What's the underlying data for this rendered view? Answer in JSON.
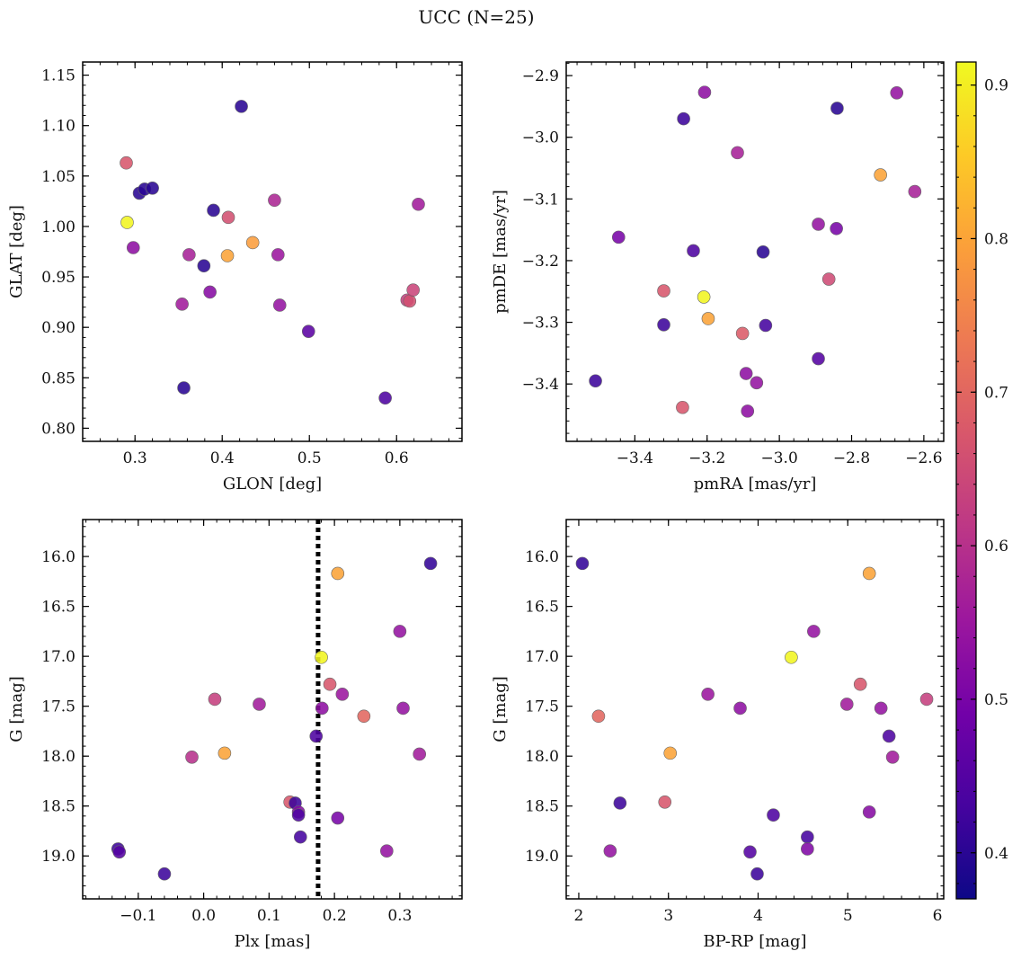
{
  "figure": {
    "title": "UCC (N=25)"
  },
  "colorbar": {
    "colormap": "plasma",
    "range": [
      0.37,
      0.915
    ],
    "ticks": [
      0.4,
      0.5,
      0.6,
      0.7,
      0.8,
      0.9
    ],
    "tick_labels": [
      "0.4",
      "0.5",
      "0.6",
      "0.7",
      "0.8",
      "0.9"
    ],
    "colors": [
      "#0d0887",
      "#46039f",
      "#7201a8",
      "#9c179e",
      "#bd3786",
      "#d8576b",
      "#ed7953",
      "#fb9f3a",
      "#fdca26",
      "#f0f921"
    ]
  },
  "chart_data": [
    {
      "type": "scatter",
      "name": "glon-glat",
      "xlabel": "GLON [deg]",
      "ylabel": "GLAT [deg]",
      "xlim": [
        0.24,
        0.675
      ],
      "ylim": [
        0.787,
        1.163
      ],
      "yinvert": false,
      "xticks": [
        0.3,
        0.4,
        0.5,
        0.6
      ],
      "xtick_labels": [
        "0.3",
        "0.4",
        "0.5",
        "0.6"
      ],
      "yticks": [
        0.8,
        0.85,
        0.9,
        0.95,
        1.0,
        1.05,
        1.1,
        1.15
      ],
      "ytick_labels": [
        "0.80",
        "0.85",
        "0.90",
        "0.95",
        "1.00",
        "1.05",
        "1.10",
        "1.15"
      ],
      "points": [
        {
          "x": 0.422,
          "y": 1.119,
          "c": 0.4
        },
        {
          "x": 0.29,
          "y": 1.063,
          "c": 0.67
        },
        {
          "x": 0.305,
          "y": 1.033,
          "c": 0.4
        },
        {
          "x": 0.311,
          "y": 1.037,
          "c": 0.4
        },
        {
          "x": 0.32,
          "y": 1.038,
          "c": 0.4
        },
        {
          "x": 0.291,
          "y": 1.004,
          "c": 0.91
        },
        {
          "x": 0.298,
          "y": 0.979,
          "c": 0.53
        },
        {
          "x": 0.39,
          "y": 1.016,
          "c": 0.4
        },
        {
          "x": 0.407,
          "y": 1.009,
          "c": 0.66
        },
        {
          "x": 0.46,
          "y": 1.026,
          "c": 0.58
        },
        {
          "x": 0.625,
          "y": 1.022,
          "c": 0.56
        },
        {
          "x": 0.362,
          "y": 0.972,
          "c": 0.57
        },
        {
          "x": 0.406,
          "y": 0.971,
          "c": 0.8
        },
        {
          "x": 0.435,
          "y": 0.984,
          "c": 0.79
        },
        {
          "x": 0.379,
          "y": 0.961,
          "c": 0.4
        },
        {
          "x": 0.464,
          "y": 0.972,
          "c": 0.55
        },
        {
          "x": 0.354,
          "y": 0.923,
          "c": 0.56
        },
        {
          "x": 0.386,
          "y": 0.935,
          "c": 0.52
        },
        {
          "x": 0.466,
          "y": 0.922,
          "c": 0.54
        },
        {
          "x": 0.499,
          "y": 0.896,
          "c": 0.46
        },
        {
          "x": 0.612,
          "y": 0.927,
          "c": 0.63
        },
        {
          "x": 0.615,
          "y": 0.926,
          "c": 0.66
        },
        {
          "x": 0.619,
          "y": 0.937,
          "c": 0.64
        },
        {
          "x": 0.356,
          "y": 0.84,
          "c": 0.4
        },
        {
          "x": 0.587,
          "y": 0.83,
          "c": 0.44
        }
      ]
    },
    {
      "type": "scatter",
      "name": "pm",
      "xlabel": "pmRA [mas/yr]",
      "ylabel": "pmDE [mas/yr]",
      "xlim": [
        -3.59,
        -2.545
      ],
      "ylim": [
        -3.493,
        -2.878
      ],
      "yinvert": false,
      "xticks": [
        -3.4,
        -3.2,
        -3.0,
        -2.8,
        -2.6
      ],
      "xtick_labels": [
        "−3.4",
        "−3.2",
        "−3.0",
        "−2.8",
        "−2.6"
      ],
      "yticks": [
        -3.4,
        -3.3,
        -3.2,
        -3.1,
        -3.0,
        -2.9
      ],
      "ytick_labels": [
        "−3.4",
        "−3.3",
        "−3.2",
        "−3.1",
        "−3.0",
        "−2.9"
      ],
      "points": [
        {
          "x": -3.207,
          "y": -2.927,
          "c": 0.53
        },
        {
          "x": -2.675,
          "y": -2.928,
          "c": 0.54
        },
        {
          "x": -3.265,
          "y": -2.97,
          "c": 0.42
        },
        {
          "x": -2.84,
          "y": -2.953,
          "c": 0.4
        },
        {
          "x": -3.116,
          "y": -3.025,
          "c": 0.57
        },
        {
          "x": -2.72,
          "y": -3.061,
          "c": 0.8
        },
        {
          "x": -2.625,
          "y": -3.088,
          "c": 0.57
        },
        {
          "x": -3.445,
          "y": -3.162,
          "c": 0.5
        },
        {
          "x": -2.892,
          "y": -3.141,
          "c": 0.54
        },
        {
          "x": -2.842,
          "y": -3.148,
          "c": 0.5
        },
        {
          "x": -3.238,
          "y": -3.184,
          "c": 0.44
        },
        {
          "x": -3.045,
          "y": -3.186,
          "c": 0.4
        },
        {
          "x": -3.32,
          "y": -3.249,
          "c": 0.67
        },
        {
          "x": -3.209,
          "y": -3.259,
          "c": 0.91
        },
        {
          "x": -2.863,
          "y": -3.23,
          "c": 0.65
        },
        {
          "x": -3.32,
          "y": -3.304,
          "c": 0.42
        },
        {
          "x": -3.197,
          "y": -3.294,
          "c": 0.8
        },
        {
          "x": -3.102,
          "y": -3.318,
          "c": 0.68
        },
        {
          "x": -3.038,
          "y": -3.305,
          "c": 0.43
        },
        {
          "x": -2.892,
          "y": -3.359,
          "c": 0.45
        },
        {
          "x": -3.509,
          "y": -3.395,
          "c": 0.42
        },
        {
          "x": -3.092,
          "y": -3.383,
          "c": 0.53
        },
        {
          "x": -3.063,
          "y": -3.398,
          "c": 0.54
        },
        {
          "x": -3.268,
          "y": -3.438,
          "c": 0.67
        },
        {
          "x": -3.088,
          "y": -3.444,
          "c": 0.53
        }
      ]
    },
    {
      "type": "scatter",
      "name": "plx-g",
      "xlabel": "Plx [mas]",
      "ylabel": "G [mag]",
      "xlim": [
        -0.185,
        0.395
      ],
      "ylim": [
        15.63,
        19.43
      ],
      "yinvert": true,
      "vline": {
        "x": 0.175,
        "style": "dotted"
      },
      "xticks": [
        -0.1,
        0.0,
        0.1,
        0.2,
        0.3
      ],
      "xtick_labels": [
        "−0.1",
        "0.0",
        "0.1",
        "0.2",
        "0.3"
      ],
      "yticks": [
        16.0,
        16.5,
        17.0,
        17.5,
        18.0,
        18.5,
        19.0
      ],
      "ytick_labels": [
        "16.0",
        "16.5",
        "17.0",
        "17.5",
        "18.0",
        "18.5",
        "19.0"
      ],
      "points": [
        {
          "x": 0.205,
          "y": 16.17,
          "c": 0.8
        },
        {
          "x": 0.347,
          "y": 16.07,
          "c": 0.41
        },
        {
          "x": 0.3,
          "y": 16.75,
          "c": 0.54
        },
        {
          "x": 0.18,
          "y": 17.01,
          "c": 0.91
        },
        {
          "x": 0.193,
          "y": 17.28,
          "c": 0.67
        },
        {
          "x": 0.212,
          "y": 17.38,
          "c": 0.55
        },
        {
          "x": 0.017,
          "y": 17.43,
          "c": 0.63
        },
        {
          "x": 0.085,
          "y": 17.48,
          "c": 0.56
        },
        {
          "x": 0.181,
          "y": 17.52,
          "c": 0.53
        },
        {
          "x": 0.305,
          "y": 17.52,
          "c": 0.54
        },
        {
          "x": 0.245,
          "y": 17.6,
          "c": 0.7
        },
        {
          "x": 0.172,
          "y": 17.8,
          "c": 0.44
        },
        {
          "x": 0.032,
          "y": 17.97,
          "c": 0.8
        },
        {
          "x": 0.33,
          "y": 17.98,
          "c": 0.56
        },
        {
          "x": -0.018,
          "y": 18.01,
          "c": 0.6
        },
        {
          "x": 0.132,
          "y": 18.46,
          "c": 0.67
        },
        {
          "x": 0.14,
          "y": 18.47,
          "c": 0.42
        },
        {
          "x": 0.145,
          "y": 18.56,
          "c": 0.52
        },
        {
          "x": 0.145,
          "y": 18.59,
          "c": 0.44
        },
        {
          "x": 0.205,
          "y": 18.62,
          "c": 0.5
        },
        {
          "x": 0.148,
          "y": 18.81,
          "c": 0.43
        },
        {
          "x": -0.131,
          "y": 18.93,
          "c": 0.42
        },
        {
          "x": -0.129,
          "y": 18.96,
          "c": 0.45
        },
        {
          "x": 0.28,
          "y": 18.95,
          "c": 0.54
        },
        {
          "x": -0.06,
          "y": 19.18,
          "c": 0.42
        }
      ]
    },
    {
      "type": "scatter",
      "name": "bprp-g",
      "xlabel": "BP-RP [mag]",
      "ylabel": "G [mag]",
      "xlim": [
        1.86,
        6.07
      ],
      "ylim": [
        15.63,
        19.43
      ],
      "yinvert": true,
      "xticks": [
        2,
        3,
        4,
        5,
        6
      ],
      "xtick_labels": [
        "2",
        "3",
        "4",
        "5",
        "6"
      ],
      "yticks": [
        16.0,
        16.5,
        17.0,
        17.5,
        18.0,
        18.5,
        19.0
      ],
      "ytick_labels": [
        "16.0",
        "16.5",
        "17.0",
        "17.5",
        "18.0",
        "18.5",
        "19.0"
      ],
      "points": [
        {
          "x": 2.04,
          "y": 16.07,
          "c": 0.41
        },
        {
          "x": 5.24,
          "y": 16.17,
          "c": 0.8
        },
        {
          "x": 4.62,
          "y": 16.75,
          "c": 0.54
        },
        {
          "x": 4.37,
          "y": 17.01,
          "c": 0.91
        },
        {
          "x": 5.14,
          "y": 17.28,
          "c": 0.67
        },
        {
          "x": 3.44,
          "y": 17.38,
          "c": 0.55
        },
        {
          "x": 5.88,
          "y": 17.43,
          "c": 0.63
        },
        {
          "x": 4.99,
          "y": 17.48,
          "c": 0.56
        },
        {
          "x": 3.8,
          "y": 17.52,
          "c": 0.53
        },
        {
          "x": 5.37,
          "y": 17.52,
          "c": 0.54
        },
        {
          "x": 2.22,
          "y": 17.6,
          "c": 0.7
        },
        {
          "x": 5.46,
          "y": 17.8,
          "c": 0.44
        },
        {
          "x": 3.02,
          "y": 17.97,
          "c": 0.8
        },
        {
          "x": 5.5,
          "y": 18.01,
          "c": 0.56
        },
        {
          "x": 2.96,
          "y": 18.46,
          "c": 0.67
        },
        {
          "x": 2.46,
          "y": 18.47,
          "c": 0.42
        },
        {
          "x": 5.24,
          "y": 18.56,
          "c": 0.52
        },
        {
          "x": 4.17,
          "y": 18.59,
          "c": 0.44
        },
        {
          "x": 4.55,
          "y": 18.81,
          "c": 0.43
        },
        {
          "x": 4.55,
          "y": 18.93,
          "c": 0.51
        },
        {
          "x": 2.35,
          "y": 18.95,
          "c": 0.54
        },
        {
          "x": 3.91,
          "y": 18.96,
          "c": 0.45
        },
        {
          "x": 3.99,
          "y": 19.18,
          "c": 0.42
        }
      ]
    }
  ]
}
